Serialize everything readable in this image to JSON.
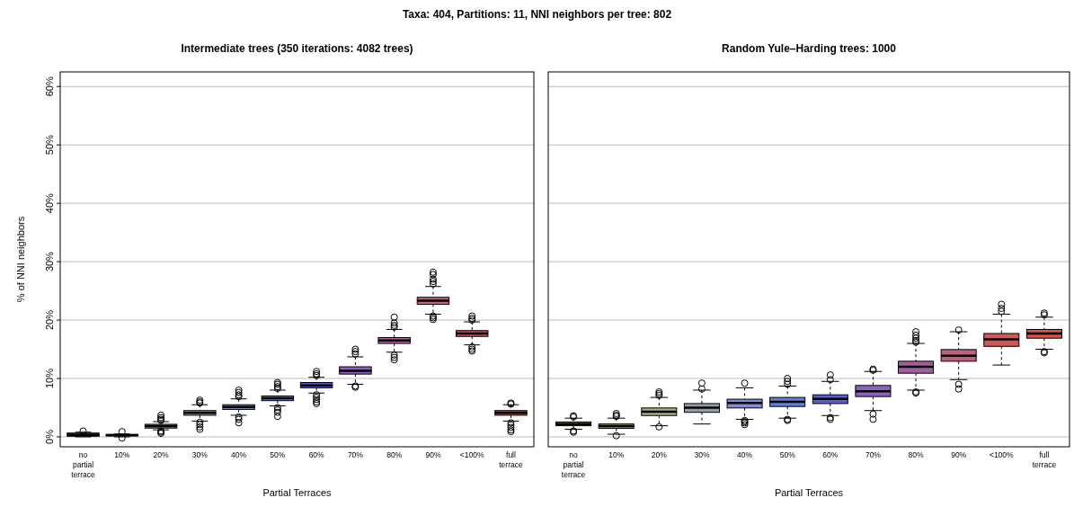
{
  "chart_data": [
    {
      "type": "box",
      "title": "Intermediate trees (350 iterations: 4082 trees)",
      "annotations": [
        "Taxa: 404, Partitions: 11, NNI neighbors per tree: 802"
      ],
      "xlabel": "Partial Terraces",
      "ylabel": "% of NNI neighbors",
      "categories": [
        "no partial terrace",
        "10%",
        "20%",
        "30%",
        "40%",
        "50%",
        "60%",
        "70%",
        "80%",
        "90%",
        "<100%",
        "full terrace"
      ],
      "ylim": [
        -1.7,
        62.5
      ],
      "yticks": [
        {
          "value": 0,
          "label": "0%"
        },
        {
          "value": 10,
          "label": "10%"
        },
        {
          "value": 20,
          "label": "20%"
        },
        {
          "value": 30,
          "label": "30%"
        },
        {
          "value": 40,
          "label": "40%"
        },
        {
          "value": 50,
          "label": "50%"
        },
        {
          "value": 60,
          "label": "60%"
        }
      ],
      "grid": "y",
      "colors": [
        "#4a5a30",
        "#3a4a2a",
        "#8a9a70",
        "#8fa0b0",
        "#7f8fcf",
        "#6b80d8",
        "#5560d0",
        "#9060c0",
        "#b060a0",
        "#c86080",
        "#d05060",
        "#d04530"
      ],
      "boxes": [
        {
          "low": 0,
          "q1": 0.1,
          "median": 0.35,
          "q3": 0.65,
          "high": 0.8,
          "outliers": [
            1.0
          ]
        },
        {
          "low": 0,
          "q1": 0.15,
          "median": 0.3,
          "q3": 0.4,
          "high": 0.5,
          "outliers": [
            0.9,
            -0.2
          ]
        },
        {
          "low": 1.2,
          "q1": 1.5,
          "median": 1.85,
          "q3": 2.15,
          "high": 2.6,
          "outliers": [
            3.7,
            3.3,
            3.0,
            2.8,
            1.0,
            0.8,
            0.6
          ]
        },
        {
          "low": 2.7,
          "q1": 3.7,
          "median": 4.1,
          "q3": 4.5,
          "high": 5.5,
          "outliers": [
            6.3,
            6.0,
            5.8,
            2.5,
            2.1,
            1.7,
            1.3
          ]
        },
        {
          "low": 3.7,
          "q1": 4.7,
          "median": 5.1,
          "q3": 5.5,
          "high": 6.5,
          "outliers": [
            8.0,
            7.6,
            7.2,
            6.9,
            3.4,
            3.0,
            2.4
          ]
        },
        {
          "low": 5.3,
          "q1": 6.2,
          "median": 6.6,
          "q3": 7.0,
          "high": 8.0,
          "outliers": [
            9.3,
            9.0,
            8.6,
            8.3,
            5.0,
            4.6,
            4.2,
            3.5
          ]
        },
        {
          "low": 7.5,
          "q1": 8.4,
          "median": 8.8,
          "q3": 9.3,
          "high": 10.2,
          "outliers": [
            11.2,
            10.8,
            10.5,
            7.2,
            6.8,
            6.4,
            6.0,
            5.7
          ]
        },
        {
          "low": 9.0,
          "q1": 10.75,
          "median": 11.3,
          "q3": 12.0,
          "high": 13.7,
          "outliers": [
            15.0,
            14.6,
            14.2,
            8.7,
            8.5
          ]
        },
        {
          "low": 14.5,
          "q1": 16.0,
          "median": 16.5,
          "q3": 17.0,
          "high": 18.4,
          "outliers": [
            20.5,
            19.5,
            19.1,
            18.8,
            14.0,
            13.6,
            13.2
          ]
        },
        {
          "low": 21.0,
          "q1": 22.7,
          "median": 23.3,
          "q3": 23.9,
          "high": 25.75,
          "outliers": [
            28.2,
            27.8,
            27.0,
            26.6,
            26.2,
            20.7,
            20.4,
            20.1
          ]
        },
        {
          "low": 15.75,
          "q1": 17.2,
          "median": 17.7,
          "q3": 18.2,
          "high": 19.7,
          "outliers": [
            20.7,
            20.3,
            20.0,
            15.4,
            15.0,
            14.7
          ]
        },
        {
          "low": 2.7,
          "q1": 3.7,
          "median": 4.1,
          "q3": 4.5,
          "high": 5.5,
          "outliers": [
            5.8,
            5.6,
            2.4,
            2.0,
            1.6,
            1.2,
            0.9
          ]
        }
      ]
    },
    {
      "type": "box",
      "title": "Random Yule–Harding trees: 1000",
      "xlabel": "Partial Terraces",
      "categories": [
        "no partial terrace",
        "10%",
        "20%",
        "30%",
        "40%",
        "50%",
        "60%",
        "70%",
        "80%",
        "90%",
        "<100%",
        "full terrace"
      ],
      "ylim": [
        -1.7,
        62.5
      ],
      "yticks": [
        0,
        10,
        20,
        30,
        40,
        50,
        60
      ],
      "grid": "y",
      "tick_labels": "x",
      "colors": [
        "#7a9050",
        "#90b060",
        "#a0b080",
        "#90a0a8",
        "#8090c8",
        "#6080e0",
        "#5560d8",
        "#9060c0",
        "#a060a0",
        "#c06080",
        "#d05858",
        "#e05040"
      ],
      "boxes": [
        {
          "low": 1.3,
          "q1": 1.9,
          "median": 2.2,
          "q3": 2.55,
          "high": 3.2,
          "outliers": [
            3.6,
            3.4,
            1.0,
            0.8
          ]
        },
        {
          "low": 0.45,
          "q1": 1.45,
          "median": 1.85,
          "q3": 2.2,
          "high": 3.2,
          "outliers": [
            4.0,
            3.7,
            3.5,
            0.2
          ]
        },
        {
          "low": 1.9,
          "q1": 3.65,
          "median": 4.3,
          "q3": 4.95,
          "high": 6.75,
          "outliers": [
            7.7,
            7.4,
            7.1,
            1.7
          ]
        },
        {
          "low": 2.2,
          "q1": 4.2,
          "median": 5.0,
          "q3": 5.7,
          "high": 8.0,
          "outliers": [
            9.2,
            8.2
          ]
        },
        {
          "low": 3.0,
          "q1": 4.95,
          "median": 5.8,
          "q3": 6.45,
          "high": 8.4,
          "outliers": [
            9.2,
            2.8,
            2.6,
            2.4,
            2.1
          ]
        },
        {
          "low": 3.2,
          "q1": 5.2,
          "median": 6.0,
          "q3": 6.75,
          "high": 8.7,
          "outliers": [
            10.0,
            9.5,
            9.0,
            3.0,
            2.8
          ]
        },
        {
          "low": 3.65,
          "q1": 5.7,
          "median": 6.5,
          "q3": 7.2,
          "high": 9.5,
          "outliers": [
            10.6,
            9.8,
            3.3,
            3.0
          ]
        },
        {
          "low": 4.5,
          "q1": 6.9,
          "median": 7.8,
          "q3": 8.8,
          "high": 11.2,
          "outliers": [
            11.6,
            11.4,
            3.9,
            3.0
          ]
        },
        {
          "low": 8.0,
          "q1": 10.9,
          "median": 12.0,
          "q3": 12.95,
          "high": 16.0,
          "outliers": [
            18.0,
            17.4,
            16.9,
            16.5,
            16.2,
            7.7,
            7.5
          ]
        },
        {
          "low": 9.8,
          "q1": 12.95,
          "median": 13.9,
          "q3": 14.95,
          "high": 18.0,
          "outliers": [
            18.3,
            9.0,
            8.2
          ]
        },
        {
          "low": 12.3,
          "q1": 15.5,
          "median": 16.7,
          "q3": 17.7,
          "high": 21.0,
          "outliers": [
            22.7,
            22.0,
            21.5
          ]
        },
        {
          "low": 15.0,
          "q1": 16.9,
          "median": 17.7,
          "q3": 18.4,
          "high": 20.5,
          "outliers": [
            21.2,
            20.9,
            14.6,
            14.4
          ]
        }
      ]
    }
  ]
}
